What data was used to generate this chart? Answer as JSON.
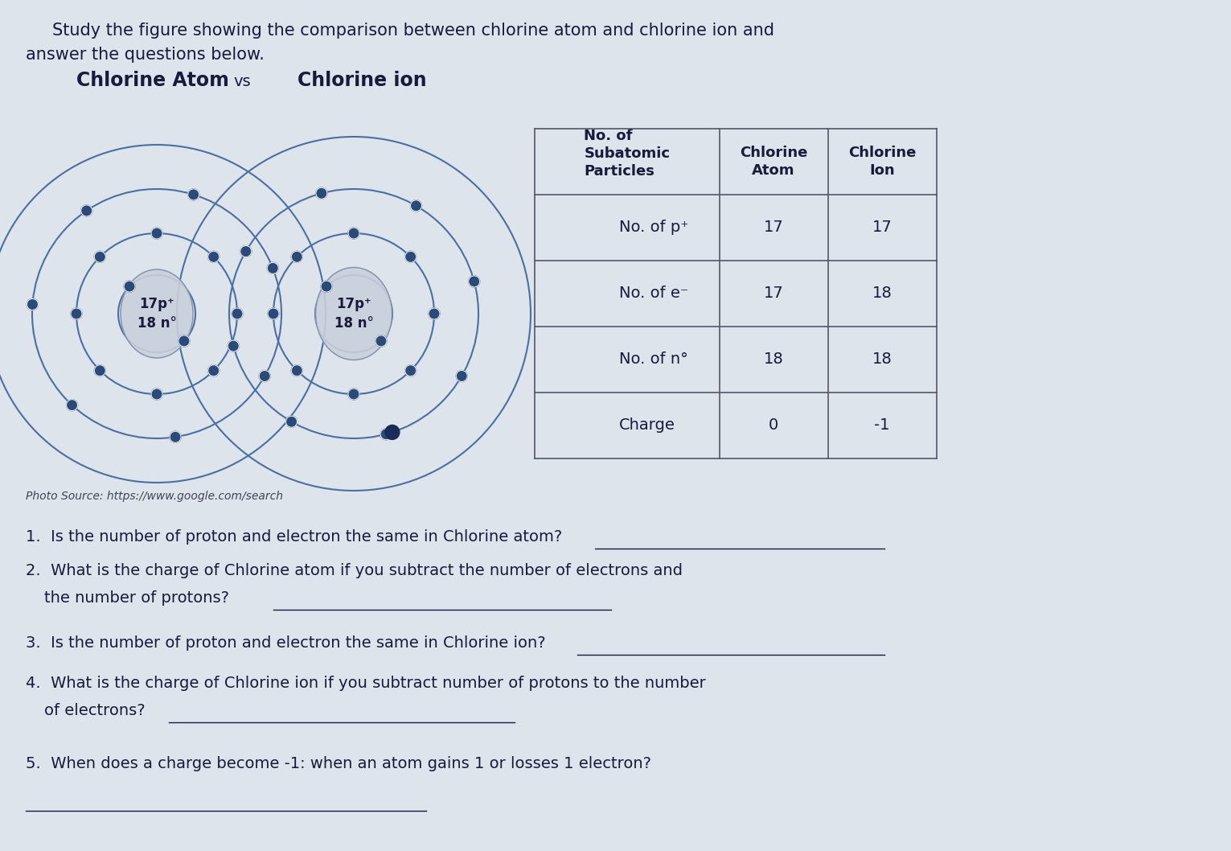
{
  "background_color": "#dde4ec",
  "title_line1": "Study the figure showing the comparison between chlorine atom and chlorine ion and",
  "title_line2": "answer the questions below.",
  "subtitle_atom": "Chlorine Atom",
  "subtitle_vs": "vs",
  "subtitle_ion": "Chlorine ion",
  "photo_source": "Photo Source: https://www.google.com/search",
  "table_headers": [
    "No. of\nSubatomic\nParticles",
    "Chlorine\nAtom",
    "Chlorine\nIon"
  ],
  "table_rows": [
    [
      "No. of p⁺",
      "17",
      "17"
    ],
    [
      "No. of e⁻",
      "17",
      "18"
    ],
    [
      "No. of n°",
      "18",
      "18"
    ],
    [
      "Charge",
      "0",
      "-1"
    ]
  ],
  "atom_label_line1": "17p⁺",
  "atom_label_line2": "18 n°",
  "electron_color": "#2b4a7a",
  "orbit_color": "#4a6fa0",
  "nucleus_color": "#b0c0d8",
  "text_color": "#1a1a3a",
  "font_size_title": 15,
  "font_size_subtitle": 17,
  "font_size_table": 13,
  "font_size_questions": 14
}
